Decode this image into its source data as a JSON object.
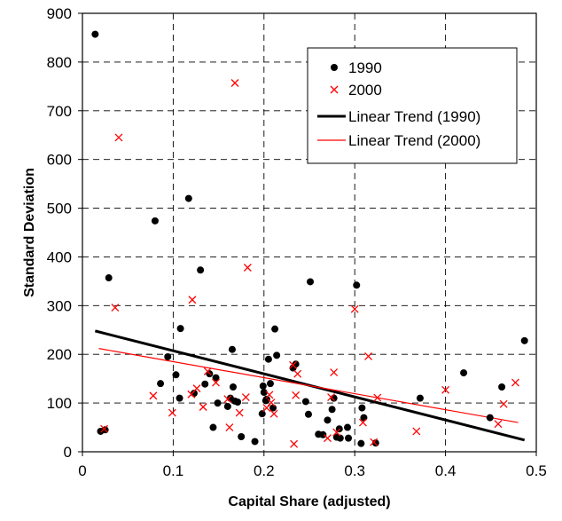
{
  "chart_data": {
    "type": "scatter",
    "xlabel": "Capital Share (adjusted)",
    "ylabel": "Standard Deviation",
    "xlim": [
      0,
      0.5
    ],
    "ylim": [
      0,
      900
    ],
    "x_ticks": [
      "0",
      "0.1",
      "0.2",
      "0.3",
      "0.4",
      "0.5"
    ],
    "y_ticks": [
      "0",
      "100",
      "200",
      "300",
      "400",
      "500",
      "600",
      "700",
      "800",
      "900"
    ],
    "grid": true,
    "legend_position": "top-right",
    "series": [
      {
        "name": "1990",
        "marker": "circle",
        "color": "#000000",
        "points": [
          [
            0.014,
            857
          ],
          [
            0.02,
            42
          ],
          [
            0.025,
            45
          ],
          [
            0.029,
            357
          ],
          [
            0.08,
            474
          ],
          [
            0.086,
            140
          ],
          [
            0.094,
            195
          ],
          [
            0.103,
            158
          ],
          [
            0.107,
            110
          ],
          [
            0.108,
            253
          ],
          [
            0.117,
            520
          ],
          [
            0.123,
            120
          ],
          [
            0.13,
            373
          ],
          [
            0.135,
            139
          ],
          [
            0.14,
            160
          ],
          [
            0.144,
            50
          ],
          [
            0.147,
            152
          ],
          [
            0.149,
            100
          ],
          [
            0.16,
            93
          ],
          [
            0.163,
            110
          ],
          [
            0.165,
            210
          ],
          [
            0.166,
            133
          ],
          [
            0.168,
            104
          ],
          [
            0.171,
            102
          ],
          [
            0.175,
            31
          ],
          [
            0.19,
            21
          ],
          [
            0.198,
            78
          ],
          [
            0.199,
            135
          ],
          [
            0.2,
            122
          ],
          [
            0.202,
            105
          ],
          [
            0.203,
            108
          ],
          [
            0.205,
            190
          ],
          [
            0.207,
            140
          ],
          [
            0.21,
            90
          ],
          [
            0.212,
            252
          ],
          [
            0.214,
            198
          ],
          [
            0.232,
            172
          ],
          [
            0.235,
            180
          ],
          [
            0.246,
            103
          ],
          [
            0.249,
            77
          ],
          [
            0.251,
            349
          ],
          [
            0.26,
            36
          ],
          [
            0.265,
            35
          ],
          [
            0.27,
            65
          ],
          [
            0.275,
            87
          ],
          [
            0.277,
            110
          ],
          [
            0.28,
            30
          ],
          [
            0.283,
            47
          ],
          [
            0.284,
            28
          ],
          [
            0.292,
            50
          ],
          [
            0.293,
            28
          ],
          [
            0.302,
            342
          ],
          [
            0.307,
            17
          ],
          [
            0.308,
            90
          ],
          [
            0.31,
            70
          ],
          [
            0.323,
            18
          ],
          [
            0.372,
            110
          ],
          [
            0.42,
            162
          ],
          [
            0.449,
            70
          ],
          [
            0.462,
            133
          ],
          [
            0.487,
            228
          ]
        ]
      },
      {
        "name": "2000",
        "marker": "x",
        "color": "#ff0000",
        "points": [
          [
            0.024,
            47
          ],
          [
            0.036,
            296
          ],
          [
            0.04,
            645
          ],
          [
            0.078,
            115
          ],
          [
            0.099,
            80
          ],
          [
            0.12,
            118
          ],
          [
            0.121,
            312
          ],
          [
            0.126,
            130
          ],
          [
            0.133,
            92
          ],
          [
            0.138,
            165
          ],
          [
            0.147,
            142
          ],
          [
            0.16,
            108
          ],
          [
            0.162,
            50
          ],
          [
            0.168,
            757
          ],
          [
            0.173,
            80
          ],
          [
            0.18,
            112
          ],
          [
            0.182,
            378
          ],
          [
            0.203,
            90
          ],
          [
            0.206,
            117
          ],
          [
            0.208,
            101
          ],
          [
            0.211,
            78
          ],
          [
            0.232,
            178
          ],
          [
            0.233,
            16
          ],
          [
            0.235,
            116
          ],
          [
            0.237,
            160
          ],
          [
            0.27,
            28
          ],
          [
            0.274,
            112
          ],
          [
            0.277,
            163
          ],
          [
            0.28,
            40
          ],
          [
            0.3,
            293
          ],
          [
            0.309,
            60
          ],
          [
            0.315,
            196
          ],
          [
            0.321,
            20
          ],
          [
            0.325,
            111
          ],
          [
            0.368,
            42
          ],
          [
            0.4,
            127
          ],
          [
            0.458,
            57
          ],
          [
            0.464,
            98
          ],
          [
            0.477,
            142
          ]
        ]
      }
    ],
    "trends": [
      {
        "name": "Linear Trend (1990)",
        "color": "#000000",
        "width": 3,
        "x": [
          0.014,
          0.487
        ],
        "y": [
          248,
          24
        ]
      },
      {
        "name": "Linear Trend (2000)",
        "color": "#ff0000",
        "width": 1.2,
        "x": [
          0.018,
          0.48
        ],
        "y": [
          212,
          60
        ]
      }
    ]
  }
}
